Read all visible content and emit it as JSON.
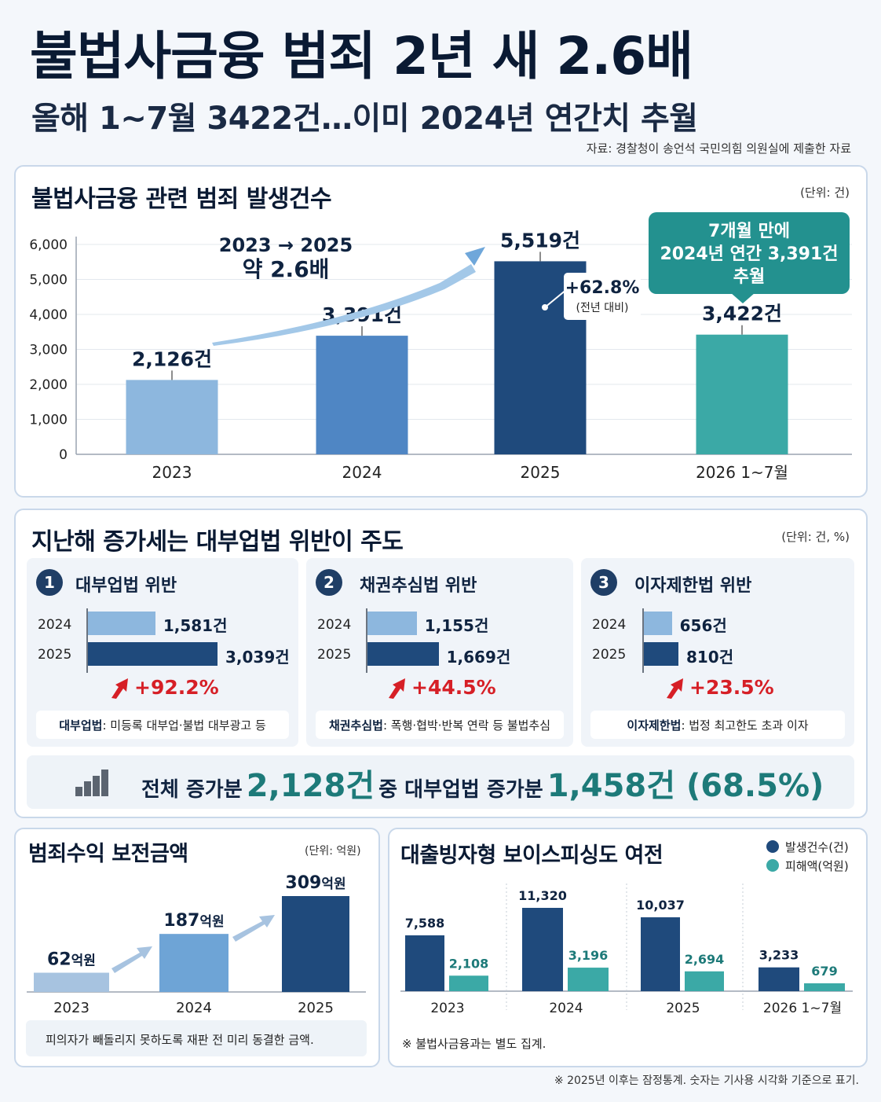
{
  "header": {
    "title": "불법사금융 범죄 2년 새 2.6배",
    "subtitle": "올해 1~7월 3422건…이미 2024년 연간치 추월",
    "source": "자료: 경찰청이 송언석 국민의힘 의원실에 제출한 자료"
  },
  "colors": {
    "bar_2023": "#8db7de",
    "bar_2024": "#4f86c4",
    "bar_2025": "#1f4a7c",
    "bar_2026": "#3ba9a6",
    "navy": "#1f3e66",
    "teal": "#23918f",
    "red": "#d61f26"
  },
  "main_chart": {
    "title": "불법사금융 관련 범죄 발생건수",
    "unit": "(단위: 건)",
    "growth_label_line1": "2023 → 2025",
    "growth_label_line2": "약 2.6배",
    "yoy_change": "+62.8%",
    "yoy_note": "(전년 대비)",
    "callout_line1": "7개월 만에",
    "callout_line2": "2024년 연간 3,391건",
    "callout_line3": "추월"
  },
  "mid": {
    "title": "지난해 증가세는 대부업법 위반이 주도",
    "unit": "(단위: 건, %)",
    "categories": [
      {
        "num": "1",
        "name": "대부업법 위반",
        "y2024_label": "2024",
        "y2025_label": "2025",
        "v2024": 1581,
        "v2025": 3039,
        "v2024_text": "1,581건",
        "v2025_text": "3,039건",
        "change": "+92.2%",
        "note_bold": "대부업법",
        "note_text": ": 미등록 대부업·불법 대부광고 등"
      },
      {
        "num": "2",
        "name": "채권추심법 위반",
        "y2024_label": "2024",
        "y2025_label": "2025",
        "v2024": 1155,
        "v2025": 1669,
        "v2024_text": "1,155건",
        "v2025_text": "1,669건",
        "change": "+44.5%",
        "note_bold": "채권추심법",
        "note_text": ": 폭행·협박·반복 연락 등 불법추심"
      },
      {
        "num": "3",
        "name": "이자제한법 위반",
        "y2024_label": "2024",
        "y2025_label": "2025",
        "v2024": 656,
        "v2025": 810,
        "v2024_text": "656건",
        "v2025_text": "810건",
        "change": "+23.5%",
        "note_bold": "이자제한법",
        "note_text": ": 법정 최고한도 초과 이자"
      }
    ],
    "summary_a": "전체 증가분",
    "summary_b": "2,128건",
    "summary_c": "중 대부업법 증가분",
    "summary_d": "1,458건 (68.5%)"
  },
  "proceeds": {
    "title": "범죄수익 보전금액",
    "unit": "(단위: 억원)",
    "note": "피의자가 빼돌리지 못하도록 재판 전 미리 동결한 금액."
  },
  "voice": {
    "title": "대출빙자형 보이스피싱도 여전",
    "legend_a": "발생건수(건)",
    "legend_b": "피해액(억원)",
    "note": "※ 불법사금융과는 별도 집계."
  },
  "footnote": "※ 2025년 이후는 잠정통계. 숫자는 기사용 시각화 기준으로 표기.",
  "chart_data": [
    {
      "type": "bar",
      "title": "불법사금융 관련 범죄 발생건수",
      "categories": [
        "2023",
        "2024",
        "2025",
        "2026 1~7월"
      ],
      "values": [
        2126,
        3391,
        5519,
        3422
      ],
      "labels": [
        "2,126건",
        "3,391건",
        "5,519건",
        "3,422건"
      ],
      "ylim": [
        0,
        6000
      ],
      "yticks": [
        "0",
        "1,000",
        "2,000",
        "3,000",
        "4,000",
        "5,000",
        "6,000"
      ],
      "grid": true
    },
    {
      "type": "bar",
      "title": "범죄수익 보전금액",
      "categories": [
        "2023",
        "2024",
        "2025"
      ],
      "values": [
        62,
        187,
        309
      ],
      "labels": [
        "62",
        "187",
        "309"
      ],
      "label_unit": "억원"
    },
    {
      "type": "bar",
      "title": "대출빙자형 보이스피싱도 여전",
      "categories": [
        "2023",
        "2024",
        "2025",
        "2026 1~7월"
      ],
      "series": [
        {
          "name": "발생건수(건)",
          "values": [
            7588,
            11320,
            10037,
            3233
          ],
          "labels": [
            "7,588",
            "11,320",
            "10,037",
            "3,233"
          ]
        },
        {
          "name": "피해액(억원)",
          "values": [
            2108,
            3196,
            2694,
            679
          ],
          "labels": [
            "2,108",
            "3,196",
            "2,694",
            "679"
          ]
        }
      ],
      "legend": "top-right"
    }
  ]
}
